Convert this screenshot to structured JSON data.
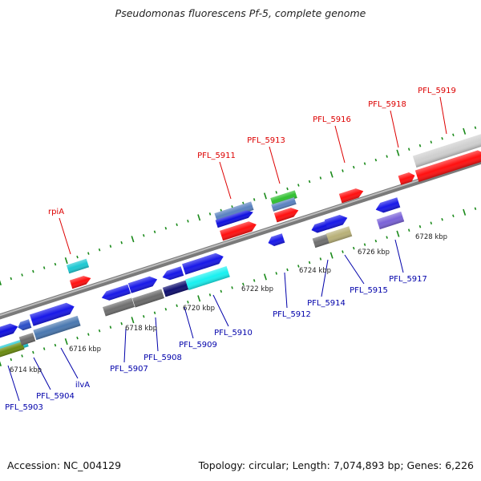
{
  "title": "Pseudomonas fluorescens Pf-5, complete genome",
  "footer": {
    "accession": "Accession: NC_004129",
    "summary": "Topology: circular; Length: 7,074,893 bp; Genes: 6,226"
  },
  "colors": {
    "top_label": "#dd0000",
    "bottom_label": "#0000aa",
    "backbone": "#8a8a8a",
    "tick": "#1a8a1a"
  },
  "ruler": [
    "6714 kbp",
    "6716 kbp",
    "6718 kbp",
    "6720 kbp",
    "6722 kbp",
    "6724 kbp",
    "6726 kbp",
    "6728 kbp"
  ],
  "top_labels": [
    "rpiA",
    "PFL_5911",
    "PFL_5913",
    "PFL_5916",
    "PFL_5918",
    "PFL_5919"
  ],
  "bottom_labels": [
    "PFL_5903",
    "PFL_5904",
    "ilvA",
    "PFL_5907",
    "PFL_5908",
    "PFL_5909",
    "PFL_5910",
    "PFL_5912",
    "PFL_5914",
    "PFL_5915",
    "PFL_5917"
  ]
}
